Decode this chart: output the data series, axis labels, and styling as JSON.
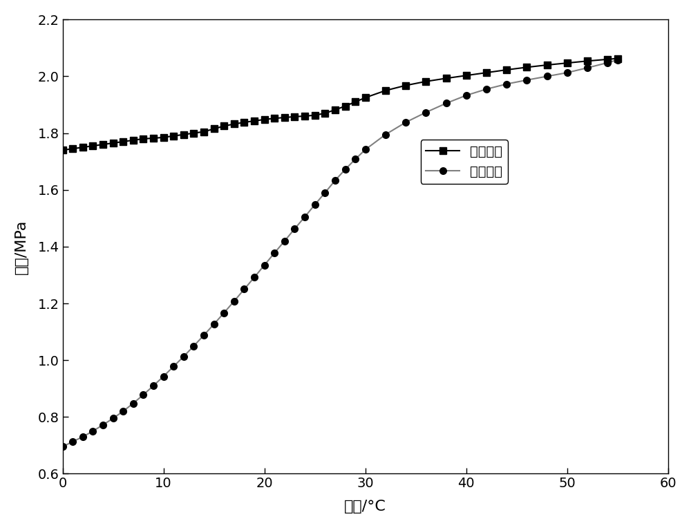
{
  "inlet_temp": [
    0,
    1,
    2,
    3,
    4,
    5,
    6,
    7,
    8,
    9,
    10,
    11,
    12,
    13,
    14,
    15,
    16,
    17,
    18,
    19,
    20,
    21,
    22,
    23,
    24,
    25,
    26,
    27,
    28,
    29,
    30,
    32,
    34,
    36,
    38,
    40,
    42,
    44,
    46,
    48,
    50,
    52,
    54,
    55
  ],
  "inlet_pressure": [
    1.74,
    1.745,
    1.75,
    1.755,
    1.76,
    1.765,
    1.77,
    1.775,
    1.78,
    1.782,
    1.785,
    1.79,
    1.795,
    1.8,
    1.805,
    1.815,
    1.825,
    1.832,
    1.838,
    1.843,
    1.848,
    1.852,
    1.855,
    1.858,
    1.86,
    1.863,
    1.87,
    1.882,
    1.895,
    1.91,
    1.925,
    1.95,
    1.968,
    1.982,
    1.993,
    2.003,
    2.013,
    2.023,
    2.032,
    2.04,
    2.047,
    2.054,
    2.06,
    2.063
  ],
  "outlet_temp": [
    0,
    1,
    2,
    3,
    4,
    5,
    6,
    7,
    8,
    9,
    10,
    11,
    12,
    13,
    14,
    15,
    16,
    17,
    18,
    19,
    20,
    21,
    22,
    23,
    24,
    25,
    26,
    27,
    28,
    29,
    30,
    32,
    34,
    36,
    38,
    40,
    42,
    44,
    46,
    48,
    50,
    52,
    54,
    55
  ],
  "outlet_pressure": [
    0.695,
    0.713,
    0.73,
    0.75,
    0.772,
    0.795,
    0.82,
    0.848,
    0.878,
    0.91,
    0.943,
    0.978,
    1.013,
    1.05,
    1.088,
    1.127,
    1.167,
    1.208,
    1.25,
    1.292,
    1.335,
    1.378,
    1.42,
    1.463,
    1.505,
    1.548,
    1.59,
    1.633,
    1.672,
    1.708,
    1.742,
    1.795,
    1.838,
    1.873,
    1.905,
    1.933,
    1.955,
    1.973,
    1.987,
    2.0,
    2.013,
    2.03,
    2.048,
    2.058
  ],
  "xlabel": "温度/°C",
  "ylabel": "压力/MPa",
  "legend_inlet": "进口压力",
  "legend_outlet": "出口压力",
  "xlim": [
    0,
    60
  ],
  "ylim": [
    0.6,
    2.2
  ],
  "xticks": [
    0,
    10,
    20,
    30,
    40,
    50,
    60
  ],
  "yticks": [
    0.6,
    0.8,
    1.0,
    1.2,
    1.4,
    1.6,
    1.8,
    2.0,
    2.2
  ],
  "inlet_color": "#000000",
  "outlet_color": "#808080",
  "background_color": "#ffffff",
  "linewidth": 1.5,
  "markersize_square": 7,
  "markersize_circle": 7,
  "font_paths": []
}
